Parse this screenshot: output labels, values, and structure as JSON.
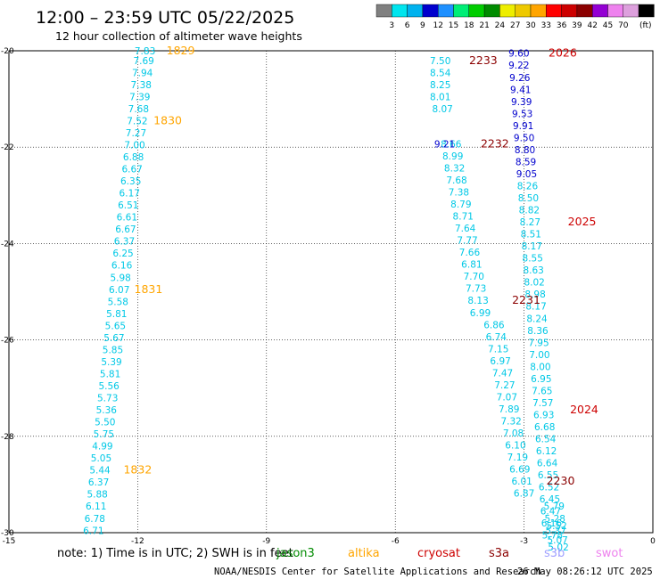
{
  "header": {
    "title": "12:00 – 23:59 UTC 05/22/2025",
    "subtitle": "12 hour collection of altimeter wave heights"
  },
  "color_scale": {
    "labels": [
      "3",
      "6",
      "9",
      "12",
      "15",
      "18",
      "21",
      "24",
      "27",
      "30",
      "33",
      "36",
      "39",
      "42",
      "45",
      "70"
    ],
    "unit": "(ft)",
    "colors": [
      "#808080",
      "#00e5ee",
      "#00b2ee",
      "#0000cd",
      "#1e90ff",
      "#00ee76",
      "#00cd00",
      "#008b00",
      "#eeee00",
      "#eec900",
      "#ffa500",
      "#ff0000",
      "#cd0000",
      "#8b0000",
      "#9400d3",
      "#ee82ee",
      "#dda0dd",
      "#000000"
    ]
  },
  "note": {
    "text": "note:  1) Time is in UTC; 2) SWH is in feet"
  },
  "legend": {
    "items": [
      {
        "name": "jason3",
        "color": "#008b00"
      },
      {
        "name": "altika",
        "color": "#ffa500"
      },
      {
        "name": "cryosat",
        "color": "#cd0000"
      },
      {
        "name": "s3a",
        "color": "#8b0000"
      },
      {
        "name": "s3b",
        "color": "#a0a0ff"
      },
      {
        "name": "swot",
        "color": "#ee82ee"
      }
    ]
  },
  "footer": {
    "source": "NOAA/NESDIS Center for Satellite Applications and Research",
    "timestamp": "26 May 08:26:12 UTC 2025"
  },
  "chart_data": {
    "type": "scatter",
    "title": "12:00 – 23:59 UTC 05/22/2025",
    "xlim": [
      -15,
      0
    ],
    "ylim": [
      -30,
      -20
    ],
    "x_ticks": [
      -15,
      -12,
      -9,
      -6,
      -3,
      0
    ],
    "y_ticks": [
      -20,
      -22,
      -24,
      -26,
      -28,
      -30
    ],
    "grid": true,
    "colors": {
      "cyan": "#00c8e6",
      "blue": "#0000cd",
      "altika": "#ffa500",
      "cryosat": "#cd0000",
      "s3a": "#8b0000"
    },
    "tracks": [
      {
        "name": "altika",
        "color_key": "cyan",
        "points": [
          [
            -11.83,
            -20.0,
            "7.83"
          ],
          [
            -11.86,
            -20.2,
            "7.69"
          ],
          [
            -11.89,
            -20.45,
            "7.94"
          ],
          [
            -11.92,
            -20.7,
            "7.38"
          ],
          [
            -11.95,
            -20.95,
            "7.39"
          ],
          [
            -11.98,
            -21.2,
            "7.68"
          ],
          [
            -12.01,
            -21.45,
            "7.52"
          ],
          [
            -12.04,
            -21.7,
            "7.27"
          ],
          [
            -12.07,
            -21.95,
            "7.00"
          ],
          [
            -12.1,
            -22.2,
            "6.88"
          ],
          [
            -12.13,
            -22.45,
            "6.67"
          ],
          [
            -12.16,
            -22.7,
            "6.35"
          ],
          [
            -12.19,
            -22.95,
            "6.17"
          ],
          [
            -12.22,
            -23.2,
            "6.51"
          ],
          [
            -12.25,
            -23.45,
            "6.61"
          ],
          [
            -12.28,
            -23.7,
            "6.67"
          ],
          [
            -12.31,
            -23.95,
            "6.37"
          ],
          [
            -12.34,
            -24.2,
            "6.25"
          ],
          [
            -12.37,
            -24.45,
            "6.16"
          ],
          [
            -12.4,
            -24.7,
            "5.98"
          ],
          [
            -12.43,
            -24.95,
            "6.07"
          ],
          [
            -12.46,
            -25.2,
            "5.58"
          ],
          [
            -12.49,
            -25.45,
            "5.81"
          ],
          [
            -12.52,
            -25.7,
            "5.65"
          ],
          [
            -12.55,
            -25.95,
            "5.67"
          ],
          [
            -12.58,
            -26.2,
            "5.85"
          ],
          [
            -12.61,
            -26.45,
            "5.39"
          ],
          [
            -12.64,
            -26.7,
            "5.81"
          ],
          [
            -12.67,
            -26.95,
            "5.56"
          ],
          [
            -12.7,
            -27.2,
            "5.73"
          ],
          [
            -12.73,
            -27.45,
            "5.36"
          ],
          [
            -12.76,
            -27.7,
            "5.50"
          ],
          [
            -12.79,
            -27.95,
            "5.75"
          ],
          [
            -12.82,
            -28.2,
            "4.99"
          ],
          [
            -12.85,
            -28.45,
            "5.05"
          ],
          [
            -12.88,
            -28.7,
            "5.44"
          ],
          [
            -12.91,
            -28.95,
            "6.37"
          ],
          [
            -12.94,
            -29.2,
            "5.88"
          ],
          [
            -12.97,
            -29.45,
            "6.11"
          ],
          [
            -13.0,
            -29.7,
            "6.78"
          ],
          [
            -13.03,
            -29.95,
            "6.71"
          ]
        ]
      },
      {
        "name": "cryosat-west",
        "color_key": "cyan",
        "points": [
          [
            -4.95,
            -20.2,
            "7.50"
          ],
          [
            -4.95,
            -20.45,
            "8.54"
          ],
          [
            -4.95,
            -20.7,
            "8.25"
          ],
          [
            -4.95,
            -20.95,
            "8.01"
          ],
          [
            -4.9,
            -21.2,
            "8.07"
          ],
          [
            -4.7,
            -21.93,
            "8.66"
          ],
          [
            -4.66,
            -22.18,
            "8.99"
          ],
          [
            -4.62,
            -22.43,
            "8.32"
          ],
          [
            -4.57,
            -22.68,
            "7.68"
          ],
          [
            -4.52,
            -22.93,
            "7.38"
          ],
          [
            -4.47,
            -23.18,
            "8.79"
          ],
          [
            -4.42,
            -23.43,
            "8.71"
          ],
          [
            -4.37,
            -23.68,
            "7.64"
          ],
          [
            -4.32,
            -23.93,
            "7.77"
          ],
          [
            -4.27,
            -24.18,
            "7.66"
          ],
          [
            -4.22,
            -24.43,
            "6.81"
          ],
          [
            -4.17,
            -24.68,
            "7.70"
          ],
          [
            -4.12,
            -24.93,
            "7.73"
          ],
          [
            -4.07,
            -25.18,
            "8.13"
          ],
          [
            -4.02,
            -25.43,
            "6.99"
          ],
          [
            -3.7,
            -25.68,
            "6.86"
          ],
          [
            -3.65,
            -25.93,
            "6.74"
          ],
          [
            -3.6,
            -26.18,
            "7.15"
          ],
          [
            -3.55,
            -26.43,
            "6.97"
          ],
          [
            -3.5,
            -26.68,
            "7.47"
          ],
          [
            -3.45,
            -26.93,
            "7.27"
          ],
          [
            -3.4,
            -27.18,
            "7.07"
          ],
          [
            -3.35,
            -27.43,
            "7.89"
          ],
          [
            -3.3,
            -27.68,
            "7.32"
          ],
          [
            -3.25,
            -27.93,
            "7.08"
          ],
          [
            -3.2,
            -28.18,
            "6.10"
          ],
          [
            -3.15,
            -28.43,
            "7.19"
          ],
          [
            -3.1,
            -28.68,
            "6.69"
          ],
          [
            -3.05,
            -28.93,
            "6.01"
          ],
          [
            -3.0,
            -29.18,
            "6.87"
          ]
        ]
      },
      {
        "name": "cryosat-west-blue",
        "color_key": "blue",
        "points": [
          [
            -4.85,
            -21.93,
            "9.21"
          ]
        ]
      },
      {
        "name": "s3a-east",
        "color_key": "blue",
        "points": [
          [
            -3.12,
            -20.05,
            "9.60"
          ],
          [
            -3.12,
            -20.3,
            "9.22"
          ],
          [
            -3.1,
            -20.55,
            "9.26"
          ],
          [
            -3.08,
            -20.8,
            "9.41"
          ],
          [
            -3.06,
            -21.05,
            "9.39"
          ],
          [
            -3.04,
            -21.3,
            "9.53"
          ],
          [
            -3.02,
            -21.55,
            "9.91"
          ],
          [
            -3.0,
            -21.8,
            "9.50"
          ],
          [
            -2.98,
            -22.05,
            "8.80"
          ],
          [
            -2.96,
            -22.3,
            "8.59"
          ],
          [
            -2.94,
            -22.55,
            "9.05"
          ]
        ]
      },
      {
        "name": "s3a-east-cyan",
        "color_key": "cyan",
        "points": [
          [
            -2.92,
            -22.8,
            "8.26"
          ],
          [
            -2.9,
            -23.05,
            "8.50"
          ],
          [
            -2.88,
            -23.3,
            "8.82"
          ],
          [
            -2.86,
            -23.55,
            "8.27"
          ],
          [
            -2.84,
            -23.8,
            "8.51"
          ],
          [
            -2.82,
            -24.05,
            "8.17"
          ],
          [
            -2.8,
            -24.3,
            "8.55"
          ],
          [
            -2.78,
            -24.55,
            "8.63"
          ],
          [
            -2.76,
            -24.8,
            "8.02"
          ],
          [
            -2.74,
            -25.05,
            "8.98"
          ],
          [
            -2.72,
            -25.3,
            "8.17"
          ],
          [
            -2.7,
            -25.55,
            "8.24"
          ],
          [
            -2.68,
            -25.8,
            "8.36"
          ],
          [
            -2.66,
            -26.05,
            "7.95"
          ],
          [
            -2.64,
            -26.3,
            "7.00"
          ],
          [
            -2.62,
            -26.55,
            "8.00"
          ],
          [
            -2.6,
            -26.8,
            "6.95"
          ],
          [
            -2.58,
            -27.05,
            "7.65"
          ],
          [
            -2.56,
            -27.3,
            "7.57"
          ],
          [
            -2.54,
            -27.55,
            "6.93"
          ],
          [
            -2.52,
            -27.8,
            "6.68"
          ],
          [
            -2.5,
            -28.05,
            "6.54"
          ],
          [
            -2.48,
            -28.3,
            "6.12"
          ],
          [
            -2.46,
            -28.55,
            "6.64"
          ],
          [
            -2.44,
            -28.8,
            "6.55"
          ],
          [
            -2.42,
            -29.05,
            "6.52"
          ],
          [
            -2.4,
            -29.3,
            "6.45"
          ],
          [
            -2.38,
            -29.55,
            "6.47"
          ],
          [
            -2.36,
            -29.8,
            "6.16"
          ],
          [
            -2.34,
            -30.05,
            "5.78"
          ]
        ]
      },
      {
        "name": "s3a-east-lower",
        "color_key": "cyan",
        "points": [
          [
            -2.3,
            -29.45,
            "5.79"
          ],
          [
            -2.28,
            -29.7,
            "5.28"
          ],
          [
            -2.26,
            -29.95,
            "5.37"
          ],
          [
            -2.24,
            -29.85,
            "5.52"
          ],
          [
            -2.22,
            -30.15,
            "5.07"
          ],
          [
            -2.2,
            -30.3,
            "5.02"
          ]
        ]
      }
    ],
    "pass_labels": [
      {
        "text": "1829",
        "x": -11.0,
        "y": -20.0,
        "color_key": "altika"
      },
      {
        "text": "1830",
        "x": -11.3,
        "y": -21.45,
        "color_key": "altika"
      },
      {
        "text": "1831",
        "x": -11.75,
        "y": -24.95,
        "color_key": "altika"
      },
      {
        "text": "1832",
        "x": -12.0,
        "y": -28.7,
        "color_key": "altika"
      },
      {
        "text": "2233",
        "x": -3.95,
        "y": -20.2,
        "color_key": "s3a"
      },
      {
        "text": "2232",
        "x": -3.68,
        "y": -21.93,
        "color_key": "s3a"
      },
      {
        "text": "2026",
        "x": -2.1,
        "y": -20.05,
        "color_key": "cryosat"
      },
      {
        "text": "2025",
        "x": -1.65,
        "y": -23.55,
        "color_key": "cryosat"
      },
      {
        "text": "2231",
        "x": -2.95,
        "y": -25.18,
        "color_key": "s3a"
      },
      {
        "text": "2024",
        "x": -1.6,
        "y": -27.45,
        "color_key": "cryosat"
      },
      {
        "text": "2230",
        "x": -2.15,
        "y": -28.93,
        "color_key": "s3a"
      }
    ]
  }
}
